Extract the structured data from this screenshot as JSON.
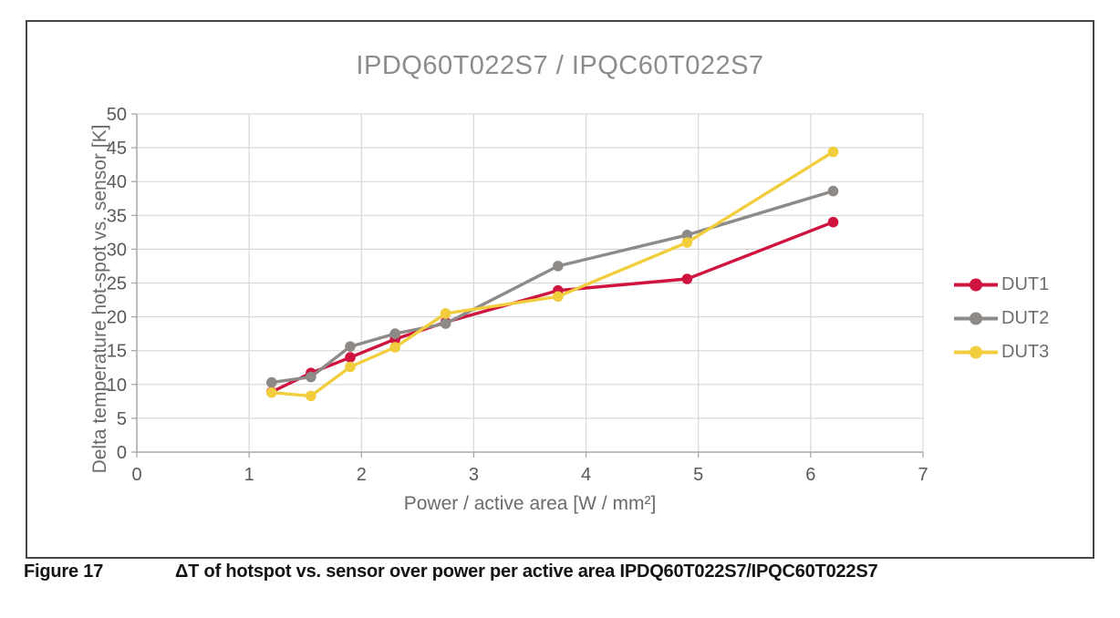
{
  "page": {
    "background": "#ffffff"
  },
  "figure_caption": {
    "label": "Figure 17",
    "text": "ΔT of hotspot vs. sensor over power per active area IPDQ60T022S7/IPQC60T022S7"
  },
  "chart_data": {
    "type": "line",
    "title": "IPDQ60T022S7 / IPQC60T022S7",
    "xlabel": "Power / active area [W / mm²]",
    "ylabel": "Delta temperature hot-spot vs. sensor [K]",
    "xlim": [
      0,
      7
    ],
    "ylim": [
      0,
      50
    ],
    "xticks": [
      0,
      1,
      2,
      3,
      4,
      5,
      6,
      7
    ],
    "yticks": [
      0,
      5,
      10,
      15,
      20,
      25,
      30,
      35,
      40,
      45,
      50
    ],
    "grid": true,
    "legend_position": "right",
    "x": [
      1.2,
      1.55,
      1.9,
      2.3,
      2.75,
      3.75,
      4.9,
      6.2
    ],
    "series": [
      {
        "name": "DUT1",
        "color": "#d01440",
        "values": [
          8.9,
          11.7,
          14.0,
          16.7,
          19.2,
          23.9,
          25.6,
          34.0
        ]
      },
      {
        "name": "DUT2",
        "color": "#8e8a88",
        "values": [
          10.3,
          11.1,
          15.6,
          17.5,
          19.0,
          27.5,
          32.1,
          38.6
        ]
      },
      {
        "name": "DUT3",
        "color": "#f2ce3e",
        "values": [
          8.8,
          8.3,
          12.6,
          15.5,
          20.5,
          23.0,
          31.0,
          44.4
        ]
      }
    ],
    "colors": {
      "gridline": "#d8d8d8",
      "axis": "#a9a9a9",
      "tick_label": "#595959",
      "axis_title": "#6b6b6b",
      "chart_title": "#8c8c8c"
    }
  }
}
